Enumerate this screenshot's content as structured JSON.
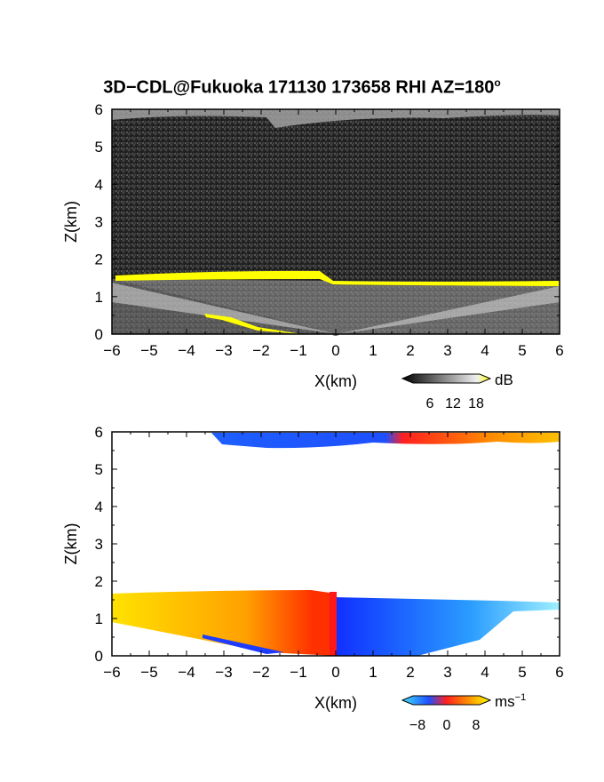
{
  "title": {
    "text": "3D−CDL@Fukuoka 171130 173658 RHI AZ=180",
    "superscript": "o"
  },
  "chart_data": [
    {
      "type": "heatmap",
      "panel": "reflectivity",
      "xlabel": "X(km)",
      "ylabel": "Z(km)",
      "xlim": [
        -6,
        6
      ],
      "ylim": [
        0,
        6
      ],
      "xticks": [
        "−6",
        "−5",
        "−4",
        "−3",
        "−2",
        "−1",
        "0",
        "1",
        "2",
        "3",
        "4",
        "5",
        "6"
      ],
      "yticks": [
        "0",
        "1",
        "2",
        "3",
        "4",
        "5",
        "6"
      ],
      "colorbar": {
        "unit": "dB",
        "ticks": [
          "6",
          "12",
          "18"
        ],
        "range": [
          0,
          20
        ]
      },
      "features": {
        "cloud_base_km": 1.5,
        "upper_layer_km": 5.9,
        "colors": {
          "background": "#2b2b2b",
          "high": "#ffff00",
          "mid": "#cfcfcf"
        }
      }
    },
    {
      "type": "heatmap",
      "panel": "doppler_velocity",
      "xlabel": "X(km)",
      "ylabel": "Z(km)",
      "xlim": [
        -6,
        6
      ],
      "ylim": [
        0,
        6
      ],
      "xticks": [
        "−6",
        "−5",
        "−4",
        "−3",
        "−2",
        "−1",
        "0",
        "1",
        "2",
        "3",
        "4",
        "5",
        "6"
      ],
      "yticks": [
        "0",
        "1",
        "2",
        "3",
        "4",
        "5",
        "6"
      ],
      "colorbar": {
        "unit": "ms",
        "unit_exponent": "−1",
        "ticks": [
          "−8",
          "0",
          "8"
        ],
        "range": [
          -10,
          10
        ]
      },
      "features": {
        "cloud_base_km": 1.5,
        "upper_layer_km": 5.9,
        "colors": {
          "negative": "#1e4fff",
          "near_zero": "#ff2020",
          "positive": "#ffd400",
          "strong_negative": "#40e0ff"
        }
      }
    }
  ]
}
